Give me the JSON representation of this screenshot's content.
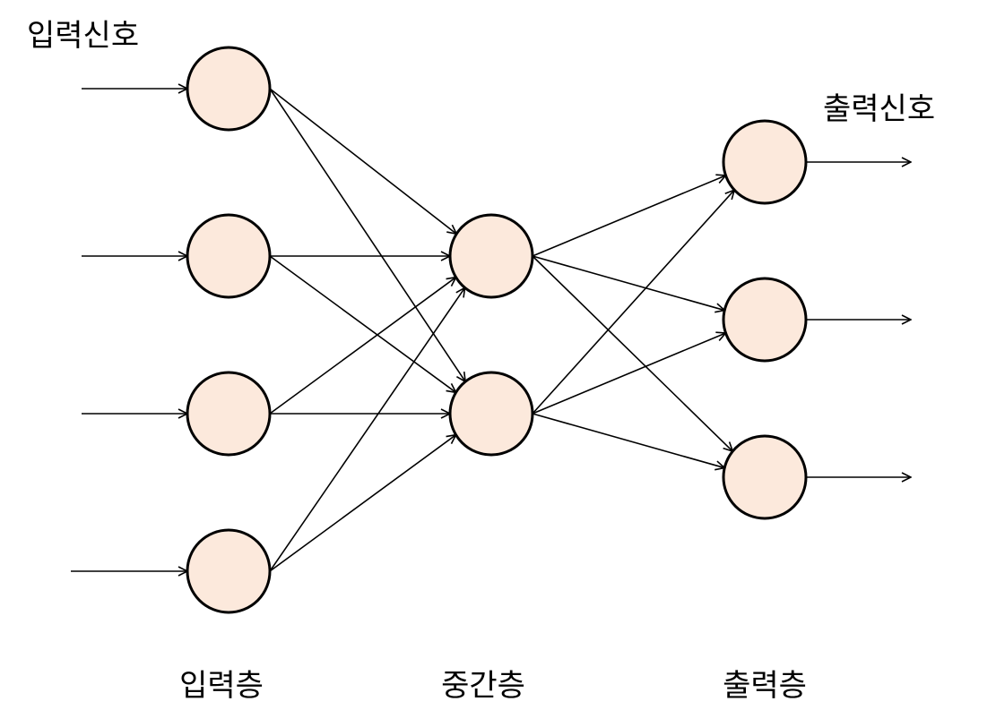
{
  "labels": {
    "input_signal": "입력신호",
    "output_signal": "출력신호",
    "input_layer": "입력층",
    "hidden_layer": "중간층",
    "output_layer": "출력층"
  },
  "colors": {
    "node_fill": "#fce9dc",
    "node_stroke": "#000000",
    "edge": "#000000"
  },
  "network": {
    "input_nodes": 4,
    "hidden_nodes": 2,
    "output_nodes": 3,
    "connectivity": "fully-connected"
  }
}
